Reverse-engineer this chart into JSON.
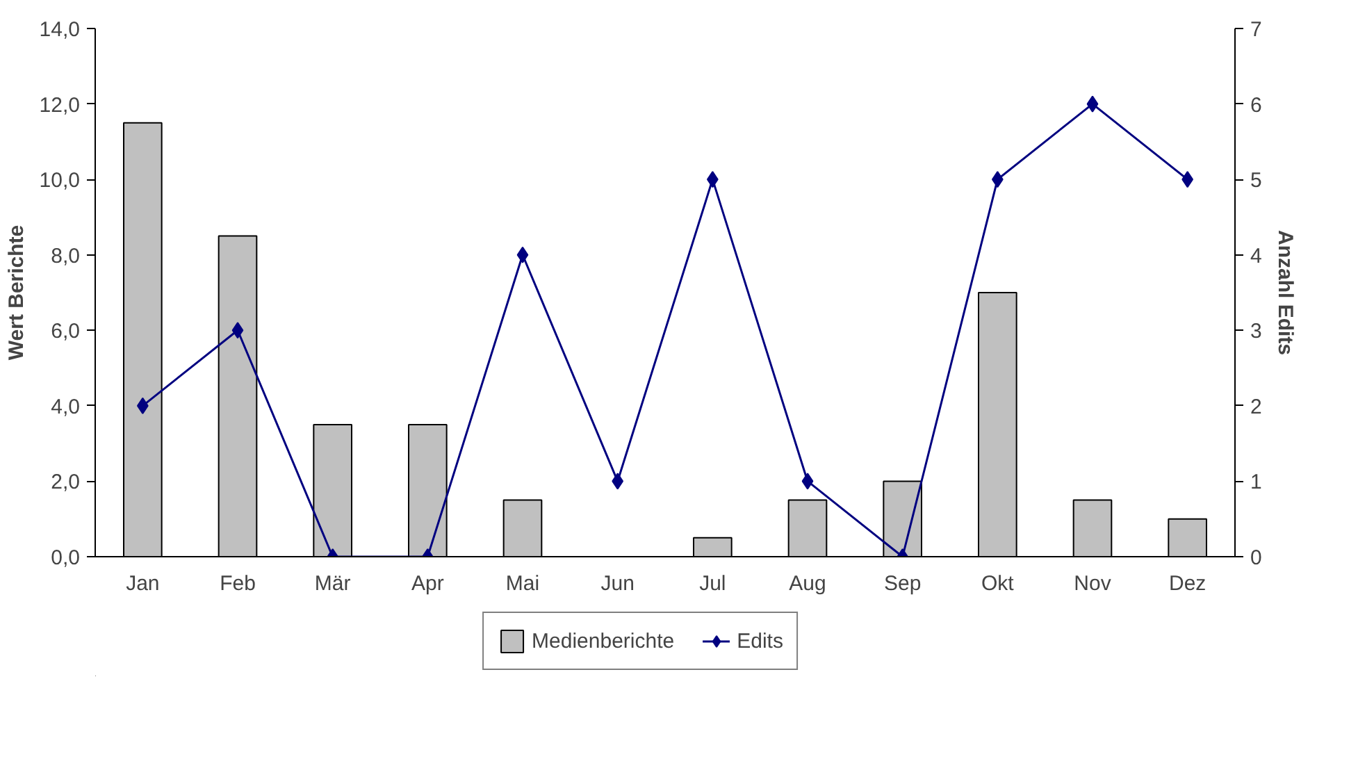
{
  "chart_data": {
    "type": "bar",
    "categories": [
      "Jan",
      "Feb",
      "Mär",
      "Apr",
      "Mai",
      "Jun",
      "Jul",
      "Aug",
      "Sep",
      "Okt",
      "Nov",
      "Dez"
    ],
    "ylabel": "Wert Berichte",
    "y2label": "Anzahl Edits",
    "ylim": [
      0,
      14
    ],
    "yticks": [
      {
        "value": 0,
        "label": "0,0"
      },
      {
        "value": 2,
        "label": "2,0"
      },
      {
        "value": 4,
        "label": "4,0"
      },
      {
        "value": 6,
        "label": "6,0"
      },
      {
        "value": 8,
        "label": "8,0"
      },
      {
        "value": 10,
        "label": "10,0"
      },
      {
        "value": 12,
        "label": "12,0"
      },
      {
        "value": 14,
        "label": "14,0"
      }
    ],
    "y2lim": [
      0,
      7
    ],
    "y2ticks": [
      0,
      1,
      2,
      3,
      4,
      5,
      6,
      7
    ],
    "series": [
      {
        "name": "Medienberichte",
        "color": "#c0c0c0",
        "values": [
          11.5,
          8.5,
          3.5,
          3.5,
          1.5,
          null,
          0.5,
          1.5,
          2.0,
          7.0,
          1.5,
          1.0
        ]
      },
      {
        "name": "Edits",
        "type": "line",
        "axis": "y2",
        "color": "#000080",
        "marker": "diamond",
        "line_style": "solid",
        "values": [
          2,
          3,
          0,
          0,
          4,
          1,
          5,
          1,
          0,
          5,
          6,
          5
        ]
      }
    ],
    "grid": false,
    "legend": "bottom"
  }
}
